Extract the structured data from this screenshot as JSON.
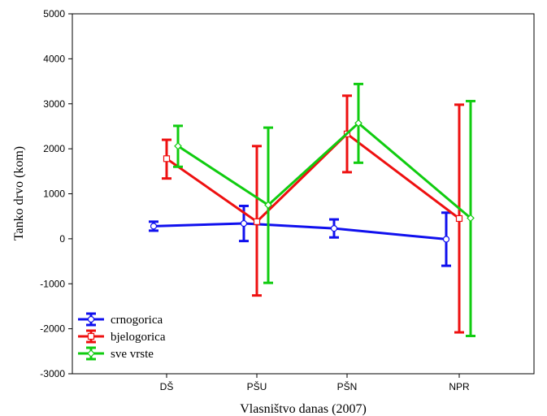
{
  "chart_data": {
    "type": "line",
    "title": "",
    "xlabel": "Vlasništvo danas (2007)",
    "ylabel": "Tanko drvo (kom)",
    "categories": [
      "DŠ",
      "PŠU",
      "PŠN",
      "NPR"
    ],
    "ylim": [
      -3000,
      5000
    ],
    "yticks": [
      5000,
      4000,
      3000,
      2000,
      1000,
      0,
      -1000,
      -2000,
      -3000
    ],
    "grid": false,
    "legend_position": "bottom-left",
    "error_bars": true,
    "series": [
      {
        "name": "crnogorica",
        "color": "#1010ee",
        "marker": "circle",
        "values": [
          280,
          340,
          230,
          -10
        ],
        "lower": [
          180,
          -50,
          30,
          -600
        ],
        "upper": [
          380,
          730,
          430,
          580
        ]
      },
      {
        "name": "bjelogorica",
        "color": "#ee1010",
        "marker": "square",
        "values": [
          1780,
          380,
          2330,
          450
        ],
        "lower": [
          1340,
          -1260,
          1480,
          -2080
        ],
        "upper": [
          2200,
          2060,
          3180,
          2980
        ]
      },
      {
        "name": "sve vrste",
        "color": "#10cc10",
        "marker": "diamond",
        "values": [
          2060,
          750,
          2570,
          460
        ],
        "lower": [
          1600,
          -980,
          1690,
          -2160
        ],
        "upper": [
          2510,
          2470,
          3440,
          3060
        ]
      }
    ]
  }
}
